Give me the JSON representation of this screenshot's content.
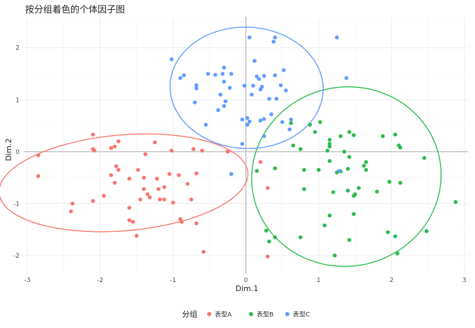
{
  "chart_data": {
    "type": "scatter",
    "title": "按分组着色的个体因子图",
    "xlabel": "Dim.1",
    "ylabel": "Dim.2",
    "xlim": [
      -3.05,
      3.05
    ],
    "ylim": [
      -2.35,
      2.6
    ],
    "xticks": [
      -3,
      -2,
      -1,
      0,
      1,
      2,
      3
    ],
    "yticks": [
      -2,
      -1,
      0,
      1,
      2
    ],
    "grid": true,
    "reference_lines": {
      "x": 0,
      "y": 0
    },
    "legend": {
      "title": "分组",
      "position": "bottom"
    },
    "series": [
      {
        "name": "表型A",
        "color": "#F8766D",
        "points": [
          [
            -2.85,
            -0.07
          ],
          [
            -2.85,
            -0.47
          ],
          [
            -2.38,
            -1.0
          ],
          [
            -2.4,
            -1.15
          ],
          [
            -2.1,
            0.33
          ],
          [
            -2.1,
            0.05
          ],
          [
            -2.08,
            0.02
          ],
          [
            -2.1,
            -0.95
          ],
          [
            -1.85,
            -0.45
          ],
          [
            -1.8,
            -0.6
          ],
          [
            -1.75,
            0.2
          ],
          [
            -1.8,
            0.1
          ],
          [
            -1.95,
            -0.85
          ],
          [
            -1.85,
            0.07
          ],
          [
            -1.78,
            -0.28
          ],
          [
            -1.75,
            -0.35
          ],
          [
            -1.6,
            -0.52
          ],
          [
            -1.6,
            -1.08
          ],
          [
            -1.6,
            -1.32
          ],
          [
            -1.55,
            -1.35
          ],
          [
            -1.5,
            -1.62
          ],
          [
            -1.48,
            -0.35
          ],
          [
            -1.45,
            -0.92
          ],
          [
            -1.4,
            -0.72
          ],
          [
            -1.4,
            -0.5
          ],
          [
            -1.38,
            -0.05
          ],
          [
            -1.35,
            -0.82
          ],
          [
            -1.32,
            -0.88
          ],
          [
            -1.25,
            0.18
          ],
          [
            -1.22,
            -0.52
          ],
          [
            -1.2,
            -0.72
          ],
          [
            -1.18,
            -0.92
          ],
          [
            -1.12,
            -0.92
          ],
          [
            -1.12,
            -0.68
          ],
          [
            -1.05,
            -0.43
          ],
          [
            -1.0,
            -0.98
          ],
          [
            -1.02,
            0.02
          ],
          [
            -0.92,
            -0.45
          ],
          [
            -0.9,
            -1.3
          ],
          [
            -0.88,
            -1.35
          ],
          [
            -0.8,
            -0.62
          ],
          [
            -0.75,
            -0.92
          ],
          [
            -0.72,
            0.05
          ],
          [
            -0.68,
            -1.38
          ],
          [
            -0.68,
            -0.42
          ],
          [
            -0.6,
            0.02
          ],
          [
            -0.58,
            -1.93
          ],
          [
            -0.25,
            0.0
          ],
          [
            0.2,
            -0.2
          ],
          [
            0.3,
            -0.7
          ],
          [
            0.3,
            -2.02
          ]
        ]
      },
      {
        "name": "表型B",
        "color": "#2BBB4C",
        "points": [
          [
            0.15,
            -0.37
          ],
          [
            0.28,
            -1.52
          ],
          [
            0.32,
            -1.73
          ],
          [
            0.4,
            -1.65
          ],
          [
            0.4,
            -0.32
          ],
          [
            0.62,
            0.55
          ],
          [
            0.65,
            0.12
          ],
          [
            0.75,
            0.05
          ],
          [
            0.75,
            -1.65
          ],
          [
            0.8,
            -0.35
          ],
          [
            0.8,
            -0.72
          ],
          [
            0.88,
            0.52
          ],
          [
            0.95,
            0.38
          ],
          [
            1.0,
            -0.35
          ],
          [
            1.02,
            0.57
          ],
          [
            1.08,
            -1.42
          ],
          [
            1.12,
            0.02
          ],
          [
            1.15,
            0.1
          ],
          [
            1.15,
            -0.18
          ],
          [
            1.15,
            0.15
          ],
          [
            1.15,
            0.23
          ],
          [
            1.15,
            -1.23
          ],
          [
            1.2,
            -0.78
          ],
          [
            1.22,
            -2.0
          ],
          [
            1.25,
            -0.4
          ],
          [
            1.3,
            -0.38
          ],
          [
            1.3,
            0.3
          ],
          [
            1.35,
            0.0
          ],
          [
            1.4,
            -0.75
          ],
          [
            1.4,
            -0.33
          ],
          [
            1.42,
            -0.1
          ],
          [
            1.42,
            0.38
          ],
          [
            1.48,
            0.32
          ],
          [
            1.48,
            -0.85
          ],
          [
            1.48,
            -1.2
          ],
          [
            1.5,
            -0.82
          ],
          [
            1.55,
            -0.7
          ],
          [
            1.62,
            -0.27
          ],
          [
            1.65,
            -0.35
          ],
          [
            1.65,
            -0.2
          ],
          [
            1.8,
            -0.77
          ],
          [
            1.88,
            0.3
          ],
          [
            1.95,
            -1.55
          ],
          [
            1.97,
            -0.58
          ],
          [
            2.05,
            0.33
          ],
          [
            2.05,
            -1.63
          ],
          [
            2.08,
            -1.96
          ],
          [
            2.1,
            0.12
          ],
          [
            2.12,
            -0.6
          ],
          [
            2.12,
            0.08
          ],
          [
            2.45,
            -0.12
          ],
          [
            2.48,
            -1.53
          ],
          [
            2.88,
            -0.97
          ],
          [
            1.42,
            -1.7
          ]
        ]
      },
      {
        "name": "表型C",
        "color": "#619CFF",
        "points": [
          [
            -1.02,
            1.78
          ],
          [
            -0.9,
            1.42
          ],
          [
            -0.85,
            1.47
          ],
          [
            -0.7,
            0.95
          ],
          [
            -0.68,
            1.28
          ],
          [
            -0.68,
            1.22
          ],
          [
            -0.55,
            0.52
          ],
          [
            -0.52,
            1.5
          ],
          [
            -0.42,
            1.48
          ],
          [
            -0.38,
            0.8
          ],
          [
            -0.35,
            1.1
          ],
          [
            -0.32,
            1.5
          ],
          [
            -0.3,
            1.62
          ],
          [
            -0.3,
            1.35
          ],
          [
            -0.3,
            0.88
          ],
          [
            -0.28,
            0.97
          ],
          [
            -0.22,
            1.23
          ],
          [
            -0.2,
            1.5
          ],
          [
            -0.2,
            -0.43
          ],
          [
            -0.05,
            0.15
          ],
          [
            -0.05,
            0.62
          ],
          [
            -0.02,
            1.27
          ],
          [
            0.02,
            0.65
          ],
          [
            0.02,
            0.52
          ],
          [
            0.05,
            0.58
          ],
          [
            0.05,
            2.2
          ],
          [
            0.08,
            1.1
          ],
          [
            0.1,
            1.27
          ],
          [
            0.12,
            1.75
          ],
          [
            0.15,
            1.45
          ],
          [
            0.18,
            1.4
          ],
          [
            0.2,
            1.2
          ],
          [
            0.22,
            1.25
          ],
          [
            0.2,
            0.6
          ],
          [
            0.25,
            0.63
          ],
          [
            0.25,
            1.46
          ],
          [
            0.25,
            0.3
          ],
          [
            0.32,
            1.02
          ],
          [
            0.35,
            0.72
          ],
          [
            0.38,
            2.12
          ],
          [
            0.4,
            1.47
          ],
          [
            0.4,
            2.2
          ],
          [
            0.42,
            1.02
          ],
          [
            0.48,
            1.28
          ],
          [
            0.5,
            0.57
          ],
          [
            0.52,
            1.57
          ],
          [
            0.55,
            1.18
          ],
          [
            0.6,
            0.43
          ],
          [
            0.62,
            0.62
          ],
          [
            1.25,
            2.2
          ],
          [
            1.38,
            1.42
          ],
          [
            1.28,
            -0.37
          ]
        ]
      }
    ],
    "ellipses": [
      {
        "group": "表型A",
        "color": "#F8766D",
        "center": [
          -1.68,
          -0.6
        ],
        "semi_axes": [
          1.72,
          0.92
        ],
        "angle_deg": 8
      },
      {
        "group": "表型B",
        "color": "#2BBB4C",
        "center": [
          1.38,
          -0.48
        ],
        "semi_axes": [
          1.73,
          1.3
        ],
        "angle_deg": 88
      },
      {
        "group": "表型C",
        "color": "#619CFF",
        "center": [
          0.01,
          1.23
        ],
        "semi_axes": [
          1.05,
          1.17
        ],
        "angle_deg": 5
      }
    ]
  }
}
